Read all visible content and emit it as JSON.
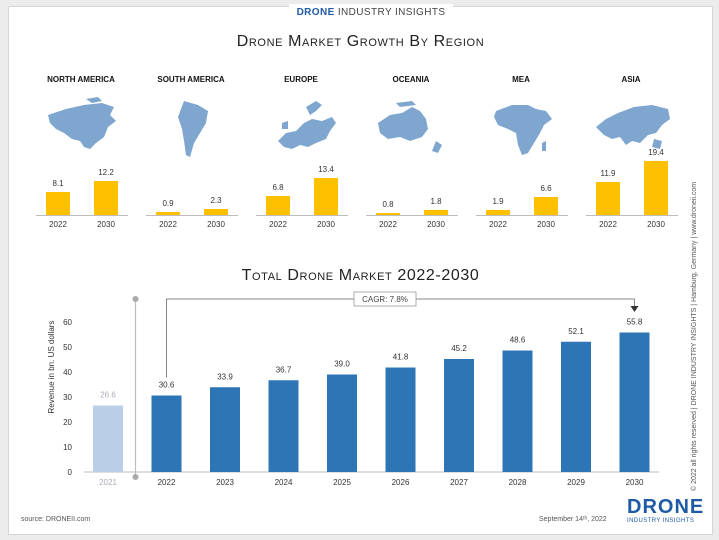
{
  "header": {
    "brand_bold": "DRONE",
    "brand_rest": "INDUSTRY INSIGHTS"
  },
  "colors": {
    "region_bar": "#ffc000",
    "main_bar": "#2e75b6",
    "faded_bar": "#b8cfe7",
    "map_fill": "#7fa6cf"
  },
  "chart_data": [
    {
      "type": "bar",
      "title": "Drone Market Growth By Region",
      "categories": [
        "2022",
        "2030"
      ],
      "series": [
        {
          "name": "NORTH AMERICA",
          "values": [
            8.1,
            12.2
          ]
        },
        {
          "name": "SOUTH AMERICA",
          "values": [
            0.9,
            2.3
          ]
        },
        {
          "name": "EUROPE",
          "values": [
            6.8,
            13.4
          ]
        },
        {
          "name": "OCEANIA",
          "values": [
            0.8,
            1.8
          ]
        },
        {
          "name": "MEA",
          "values": [
            1.9,
            6.6
          ]
        },
        {
          "name": "ASIA",
          "values": [
            11.9,
            19.4
          ]
        }
      ],
      "value_labels": [
        [
          "8.1",
          "12.2"
        ],
        [
          "0.9",
          "2.3"
        ],
        [
          "6.8",
          "13.4"
        ],
        [
          "0.8",
          "1.8"
        ],
        [
          "1.9",
          "6.6"
        ],
        [
          "11.9",
          "19.4"
        ]
      ],
      "ylim": [
        0,
        19.4
      ]
    },
    {
      "type": "bar",
      "title": "Total Drone Market 2022-2030",
      "xlabel": "",
      "ylabel": "Revenue in bn. US dollars",
      "categories": [
        "2021",
        "2022",
        "2023",
        "2024",
        "2025",
        "2026",
        "2027",
        "2028",
        "2029",
        "2030"
      ],
      "values": [
        26.6,
        30.6,
        33.9,
        36.7,
        39.0,
        41.8,
        45.2,
        48.6,
        52.1,
        55.8
      ],
      "value_labels": [
        "26.6",
        "30.6",
        "33.9",
        "36.7",
        "39.0",
        "41.8",
        "45.2",
        "48.6",
        "52.1",
        "55.8"
      ],
      "yticks": [
        "0",
        "10",
        "20",
        "30",
        "40",
        "50",
        "60"
      ],
      "ylim": [
        0,
        60
      ],
      "annotation": "CAGR: 7.8%",
      "grid": false
    }
  ],
  "footer": {
    "source": "source: DRONEII.com",
    "date": "September 14ᵗʰ, 2022",
    "side_note": "© 2022 all rights reserved  |  DRONE INDUSTRY INSIGHTS  |  Hamburg, Germany  |  www.droneii.com",
    "logo_main": "DRONE",
    "logo_sub": "INDUSTRY INSIGHTS"
  }
}
